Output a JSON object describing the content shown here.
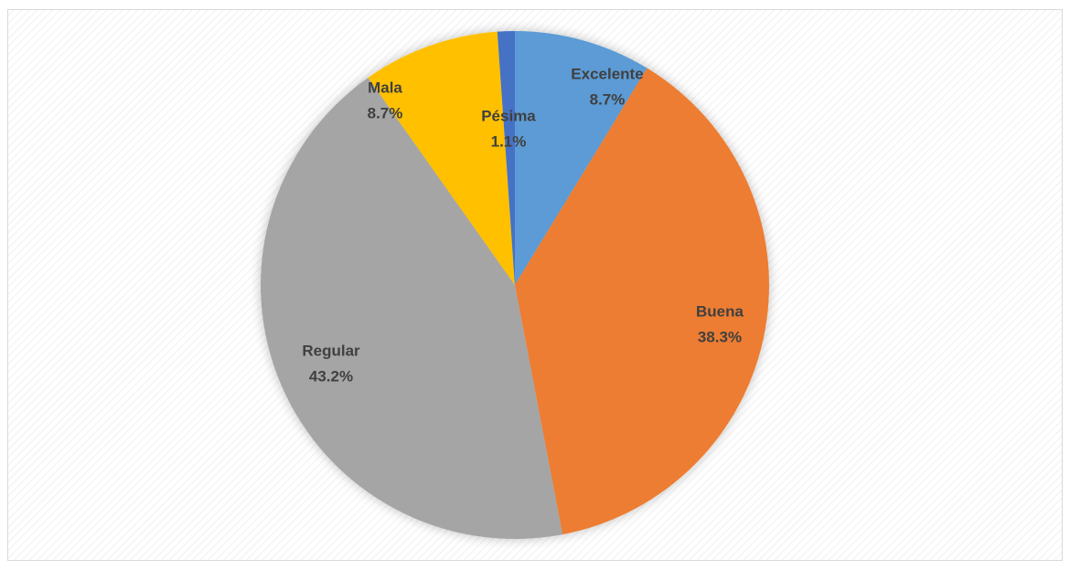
{
  "chart_data": {
    "type": "pie",
    "categories": [
      "Excelente",
      "Buena",
      "Regular",
      "Mala",
      "Pésima"
    ],
    "values": [
      8.7,
      38.3,
      43.2,
      8.7,
      1.1
    ],
    "value_labels": [
      "8.7%",
      "38.3%",
      "43.2%",
      "8.7%",
      "1.1%"
    ],
    "colors": [
      "#5b9bd5",
      "#ed7d31",
      "#a5a5a5",
      "#ffc000",
      "#4472c4"
    ]
  }
}
